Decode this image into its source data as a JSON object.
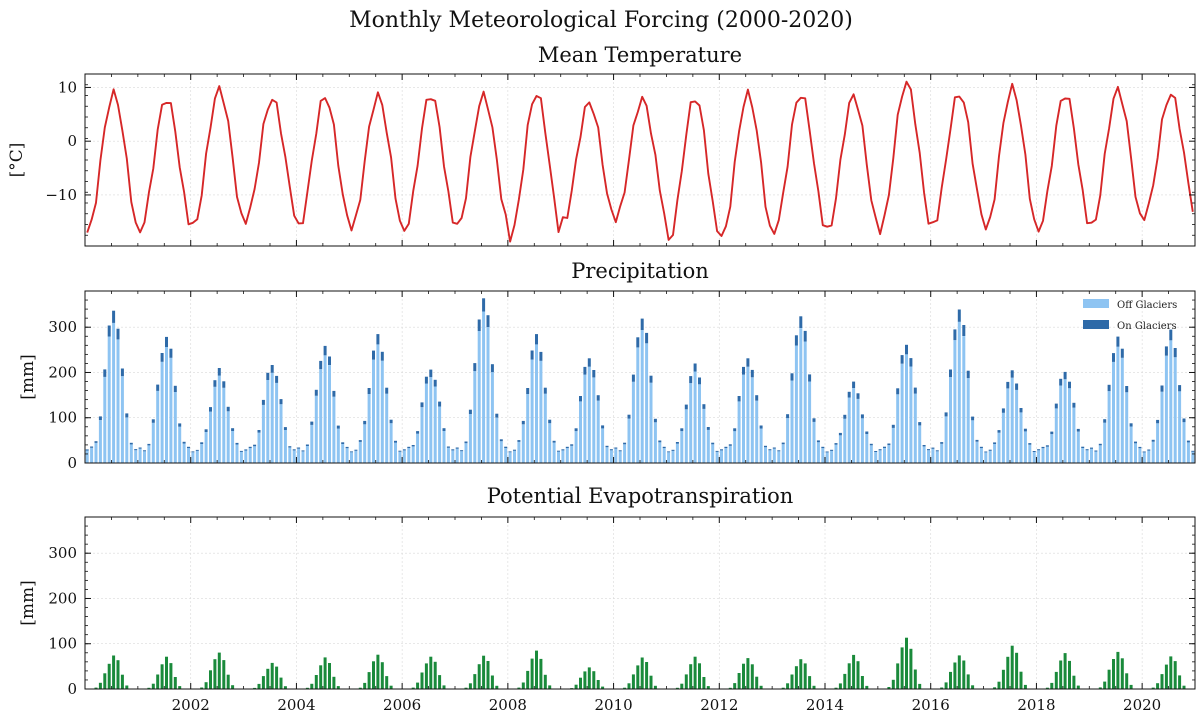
{
  "figure_title": "Monthly Meteorological Forcing (2000-2020)",
  "colors": {
    "temperature": "#d62728",
    "precip_off": "#8ec4f2",
    "precip_on": "#2e6aa8",
    "pet": "#1a8a3b",
    "grid": "#d9d9d9"
  },
  "chart_data": [
    {
      "type": "line",
      "title": "Mean Temperature",
      "ylabel": "[°C]",
      "xlim": [
        2000.0,
        2021.0
      ],
      "ylim": [
        -19.5,
        12.5
      ],
      "yticks": [
        -10,
        0,
        10
      ],
      "ytick_labels": [
        "−10",
        "0",
        "10"
      ],
      "annual_peaks": [
        8.8,
        8.0,
        9.6,
        7.9,
        8.3,
        8.4,
        8.7,
        8.4,
        8.9,
        7.2,
        7.8,
        8.2,
        8.7,
        8.8,
        8.4,
        10.9,
        8.9,
        9.8,
        8.8,
        9.5,
        8.8
      ],
      "annual_troughs": [
        -17.0,
        -16.5,
        -16.0,
        -14.5,
        -16.0,
        -16.3,
        -16.5,
        -16.0,
        -17.8,
        -15.0,
        -14.5,
        -18.5,
        -18.0,
        -16.5,
        -16.8,
        -16.5,
        -15.5,
        -16.5,
        -16.3,
        -16.0,
        -13.8
      ],
      "series": [
        {
          "name": "Mean Temperature",
          "color": "#d62728"
        }
      ]
    },
    {
      "type": "bar",
      "stacked": true,
      "title": "Precipitation",
      "ylabel": "[mm]",
      "xlim": [
        2000.0,
        2021.0
      ],
      "ylim": [
        0,
        380
      ],
      "yticks": [
        0,
        100,
        200,
        300
      ],
      "legend": {
        "position": "top-right",
        "entries": [
          "Off Glaciers",
          "On Glaciers"
        ]
      },
      "annual_peaks": [
        340,
        280,
        205,
        220,
        260,
        280,
        210,
        365,
        280,
        235,
        320,
        215,
        235,
        325,
        175,
        265,
        340,
        200,
        205,
        280,
        290
      ],
      "series": [
        {
          "name": "Off Glaciers",
          "color": "#8ec4f2",
          "share": 0.92
        },
        {
          "name": "On Glaciers",
          "color": "#2e6aa8",
          "share": 0.08
        }
      ]
    },
    {
      "type": "bar",
      "title": "Potential Evapotranspiration",
      "ylabel": "[mm]",
      "xlim": [
        2000.0,
        2021.0
      ],
      "ylim": [
        0,
        380
      ],
      "yticks": [
        0,
        100,
        200,
        300
      ],
      "xtick_labels": [
        "2002",
        "2004",
        "2006",
        "2008",
        "2010",
        "2012",
        "2014",
        "2016",
        "2018",
        "2020"
      ],
      "annual_peaks": [
        75,
        68,
        82,
        60,
        67,
        75,
        75,
        72,
        82,
        50,
        70,
        68,
        70,
        68,
        72,
        113,
        78,
        93,
        77,
        86,
        72
      ],
      "series": [
        {
          "name": "Potential Evapotranspiration",
          "color": "#1a8a3b"
        }
      ]
    }
  ]
}
